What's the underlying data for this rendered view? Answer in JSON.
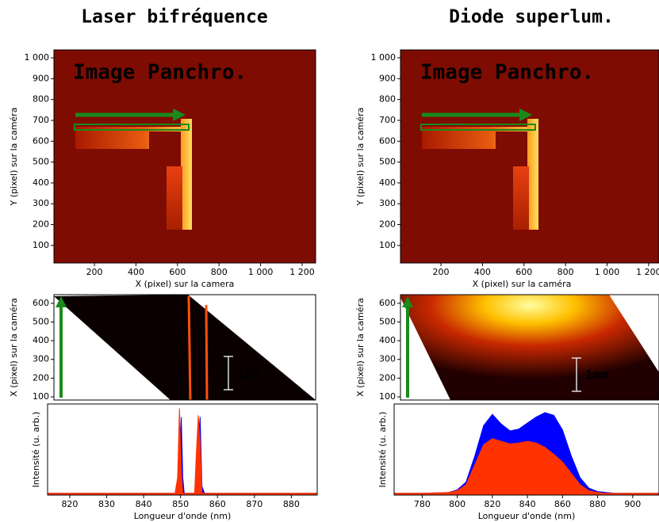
{
  "chart_data": [
    {
      "type": "image",
      "title": "Laser bifréquence",
      "annotation": "Image Panchro.",
      "xlabel": "X (pixel) sur la camera",
      "ylabel": "Y (pixel) sur la caméra",
      "xlim": [
        5,
        1265
      ],
      "ylim": [
        16,
        1038
      ],
      "xticks": [
        200,
        400,
        600,
        800,
        {
          "value": 1000,
          "label": "1 000"
        },
        {
          "value": 1200,
          "label": "1 200"
        }
      ],
      "yticks": [
        100,
        200,
        300,
        400,
        500,
        600,
        700,
        800,
        900,
        {
          "value": 1000,
          "label": "1 000"
        }
      ]
    },
    {
      "type": "image",
      "title": "Diode superlum.",
      "annotation": "Image Panchro.",
      "xlabel": "X (pixel) sur la caméra",
      "ylabel": "Y (pixel) sur la caméra",
      "xlim": [
        5,
        1250
      ],
      "ylim": [
        16,
        1038
      ],
      "xticks": [
        200,
        400,
        600,
        800,
        {
          "value": 1000,
          "label": "1 000"
        },
        {
          "value": 1200,
          "label": "1 200"
        }
      ],
      "yticks": [
        100,
        200,
        300,
        400,
        500,
        600,
        700,
        800,
        900,
        {
          "value": 1000,
          "label": "1 000"
        }
      ]
    },
    {
      "type": "image",
      "annotation": "1mm",
      "ylabel": "X (pixel) sur la caméra",
      "ylim": [
        83,
        646
      ],
      "yticks": [
        100,
        200,
        300,
        400,
        500,
        600
      ]
    },
    {
      "type": "image",
      "annotation": "1mm",
      "ylabel": "X (pixel) sur la caméra",
      "ylim": [
        83,
        646
      ],
      "yticks": [
        100,
        200,
        300,
        400,
        500,
        600
      ]
    },
    {
      "type": "area",
      "xlabel": "Longueur d'onde (nm)",
      "ylabel": "Intensité (u. arb.)",
      "xlim": [
        814,
        887
      ],
      "ylim": [
        0,
        1.05
      ],
      "xticks": [
        820,
        830,
        840,
        850,
        860,
        870,
        880
      ],
      "x": [
        814,
        816,
        848.5,
        849.2,
        849.7,
        850.2,
        850.6,
        851,
        853.8,
        854.3,
        854.8,
        855.3,
        855.8,
        856.5,
        887
      ],
      "series": [
        {
          "color": "#ff3300",
          "values": [
            0.02,
            0.02,
            0.02,
            0.2,
            1.0,
            0.3,
            0.02,
            0.02,
            0.02,
            0.5,
            0.92,
            0.6,
            0.02,
            0.02,
            0.02
          ]
        },
        {
          "color": "#0000ff",
          "values": [
            0.02,
            0.02,
            0.02,
            0.02,
            0.3,
            0.9,
            0.2,
            0.02,
            0.02,
            0.1,
            0.6,
            0.9,
            0.1,
            0.02,
            0.02
          ]
        }
      ]
    },
    {
      "type": "area",
      "xlabel": "Longueur d'onde (nm)",
      "ylabel": "Intensité (u. arb.)",
      "xlim": [
        764,
        915
      ],
      "ylim": [
        0,
        1.05
      ],
      "xticks": [
        780,
        800,
        820,
        840,
        860,
        880,
        900
      ],
      "x": [
        764,
        780,
        795,
        800,
        805,
        810,
        815,
        820,
        825,
        830,
        835,
        840,
        845,
        850,
        855,
        860,
        865,
        870,
        875,
        880,
        885,
        890,
        915
      ],
      "series": [
        {
          "color": "#ff3300",
          "values": [
            0.02,
            0.02,
            0.03,
            0.05,
            0.12,
            0.35,
            0.58,
            0.65,
            0.62,
            0.59,
            0.6,
            0.62,
            0.6,
            0.55,
            0.47,
            0.38,
            0.25,
            0.12,
            0.05,
            0.03,
            0.02,
            0.02,
            0.02
          ]
        },
        {
          "color": "#0000ff",
          "values": [
            0.02,
            0.02,
            0.03,
            0.06,
            0.15,
            0.45,
            0.8,
            0.93,
            0.82,
            0.74,
            0.76,
            0.83,
            0.9,
            0.95,
            0.92,
            0.75,
            0.45,
            0.2,
            0.08,
            0.04,
            0.03,
            0.02,
            0.02
          ]
        }
      ]
    }
  ]
}
